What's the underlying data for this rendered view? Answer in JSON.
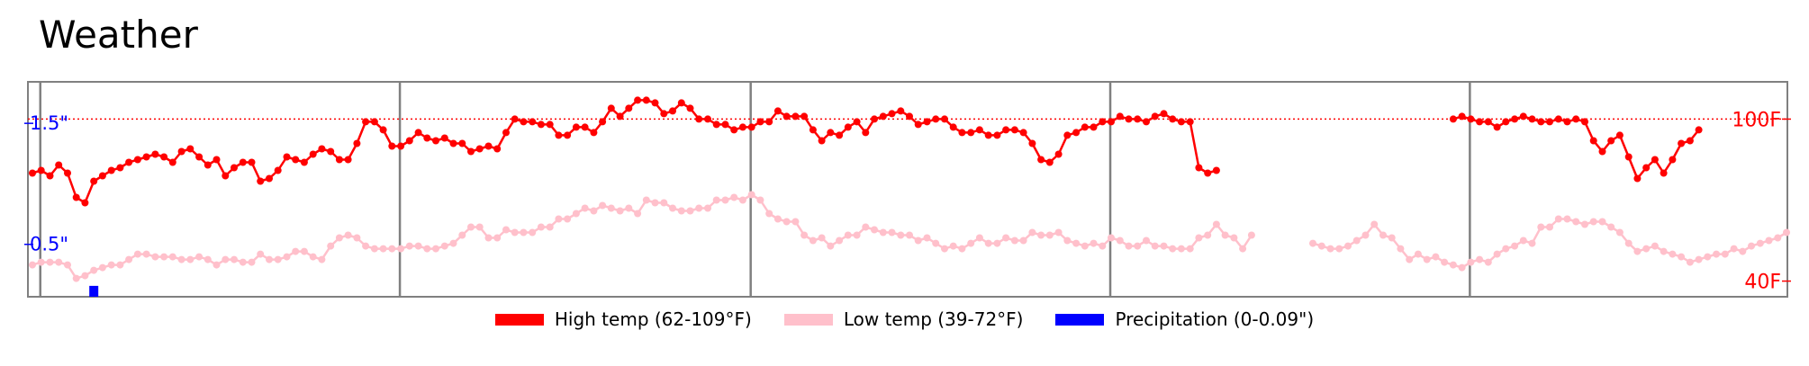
{
  "title": "Weather",
  "chart_data": {
    "type": "line",
    "title": "Weather",
    "grid": false,
    "legend_position": "bottom",
    "x_count": 201,
    "temp_axis": {
      "range_F": [
        34.2,
        113.8
      ],
      "reference_line_F": 100,
      "tick_labels": [
        "100F",
        "40F"
      ],
      "color": "#ff0000"
    },
    "precip_axis": {
      "range_in": [
        0.067,
        1.843
      ],
      "tick_labels": [
        "1.5\"",
        "0.5\""
      ],
      "color": "#0000ff"
    },
    "separators_at_index": [
      1,
      42,
      82,
      123,
      164
    ],
    "series": [
      {
        "name": "High temp (62-109°F)",
        "color": "#ff0000",
        "start_index": 0,
        "values": [
          80,
          81,
          79,
          83,
          80,
          71,
          69,
          77,
          79,
          81,
          82,
          84,
          85,
          86,
          87,
          86,
          84,
          88,
          89,
          86,
          83,
          85,
          79,
          82,
          84,
          84,
          77,
          78,
          81,
          86,
          85,
          84,
          87,
          89,
          88,
          85,
          85,
          91,
          99,
          99,
          96,
          90,
          90,
          92,
          95,
          93,
          92,
          93,
          91,
          91,
          88,
          89,
          90,
          89,
          95,
          100,
          99,
          99,
          98,
          98,
          94,
          94,
          97,
          97,
          95,
          99,
          104,
          101,
          104,
          107,
          107,
          106,
          102,
          103,
          106,
          104,
          100,
          100,
          98,
          98,
          96,
          97,
          97,
          99,
          99,
          103,
          101,
          101,
          101,
          96,
          92,
          95,
          94,
          97,
          99,
          95,
          100,
          101,
          102,
          103,
          101,
          98,
          99,
          100,
          100,
          97,
          95,
          95,
          96,
          94,
          94,
          96,
          96,
          95,
          91,
          85,
          84,
          87,
          94,
          95,
          97,
          97,
          99,
          99,
          101,
          100,
          100,
          99,
          101,
          102,
          100,
          99,
          99,
          82,
          80,
          81
        ]
      },
      {
        "name": "High temp (62-109°F)",
        "color": "#ff0000",
        "start_index": 162,
        "values": [
          100,
          101,
          100,
          99,
          99,
          97,
          99,
          100,
          101,
          100,
          99,
          99,
          100,
          99,
          100,
          99,
          92,
          88,
          92,
          94,
          86,
          78,
          82,
          85,
          80,
          85,
          91,
          92,
          96
        ]
      },
      {
        "name": "Low temp (39-72°F)",
        "color": "#ffc0cb",
        "start_index": 0,
        "values": [
          46,
          47,
          47,
          47,
          46,
          41,
          42,
          44,
          45,
          46,
          46,
          48,
          50,
          50,
          49,
          49,
          49,
          48,
          48,
          49,
          48,
          46,
          48,
          48,
          47,
          47,
          50,
          48,
          48,
          49,
          51,
          51,
          49,
          48,
          53,
          56,
          57,
          56,
          53,
          52,
          52,
          52,
          52,
          53,
          53,
          52,
          52,
          53,
          54,
          57,
          60,
          60,
          56,
          56,
          59,
          58,
          58,
          58,
          60,
          60,
          63,
          63,
          65,
          67,
          66,
          68,
          67,
          66,
          67,
          65,
          70,
          69,
          69,
          67,
          66,
          66,
          67,
          67,
          70,
          70,
          71,
          70,
          72,
          70,
          65,
          63,
          62,
          62,
          57,
          55,
          56,
          53,
          55,
          57,
          57,
          60,
          59,
          58,
          58,
          57,
          57,
          55,
          56,
          54,
          52,
          53,
          52,
          54,
          56,
          54,
          54,
          56,
          55,
          55,
          58,
          57,
          57,
          58,
          55,
          54,
          53,
          54,
          53,
          56,
          55,
          53,
          53,
          55,
          53,
          53,
          52,
          52,
          52,
          56,
          57,
          61,
          57,
          56,
          52,
          57
        ]
      },
      {
        "name": "Low temp (39-72°F)",
        "color": "#ffc0cb",
        "start_index": 146,
        "values": [
          54,
          53,
          52,
          52,
          53,
          55,
          57,
          61,
          57,
          56,
          52,
          48,
          50,
          48,
          49,
          47,
          46,
          45,
          47,
          48,
          47,
          50,
          52,
          53,
          55,
          54,
          60,
          60,
          63,
          63,
          62,
          61,
          62,
          62,
          60,
          58,
          54,
          51,
          52,
          53,
          51,
          50,
          49,
          47,
          48,
          49,
          50,
          50,
          52,
          51,
          53,
          54,
          55,
          56,
          58
        ]
      }
    ],
    "precipitation": {
      "name": "Precipitation (0-0.09\")",
      "color": "#0000ff",
      "values_by_index": [
        [
          7,
          0.09
        ]
      ]
    }
  },
  "legend": [
    {
      "label": "High temp (62-109°F)",
      "color": "#ff0000"
    },
    {
      "label": "Low temp (39-72°F)",
      "color": "#ffc0cb"
    },
    {
      "label": "Precipitation (0-0.09\")",
      "color": "#0000ff"
    }
  ]
}
